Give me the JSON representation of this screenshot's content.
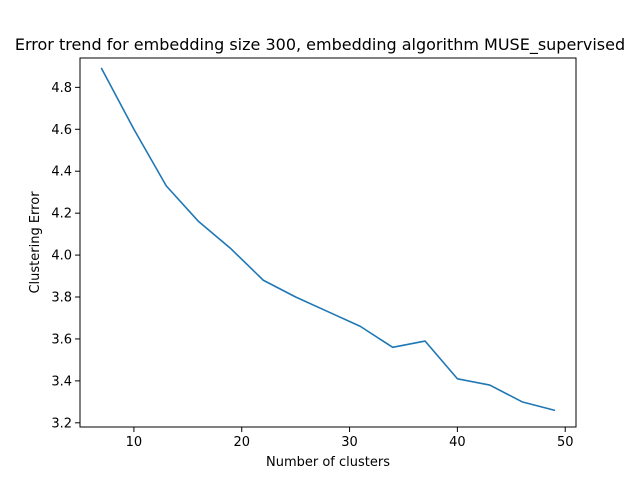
{
  "chart_data": {
    "type": "line",
    "title": "Error trend for embedding size 300, embedding algorithm MUSE_supervised",
    "xlabel": "Number of clusters",
    "ylabel": "Clustering Error",
    "xlim": [
      5,
      51
    ],
    "ylim": [
      3.18,
      4.94
    ],
    "xticks": [
      10,
      20,
      30,
      40,
      50
    ],
    "yticks": [
      3.2,
      3.4,
      3.6,
      3.8,
      4.0,
      4.2,
      4.4,
      4.6,
      4.8
    ],
    "grid": false,
    "series": [
      {
        "color": "#1f77b4",
        "x": [
          7,
          10,
          13,
          16,
          19,
          22,
          25,
          28,
          31,
          34,
          37,
          40,
          43,
          46,
          49
        ],
        "y": [
          4.89,
          4.6,
          4.33,
          4.16,
          4.03,
          3.88,
          3.8,
          3.73,
          3.66,
          3.56,
          3.59,
          3.41,
          3.38,
          3.3,
          3.26
        ]
      }
    ]
  }
}
